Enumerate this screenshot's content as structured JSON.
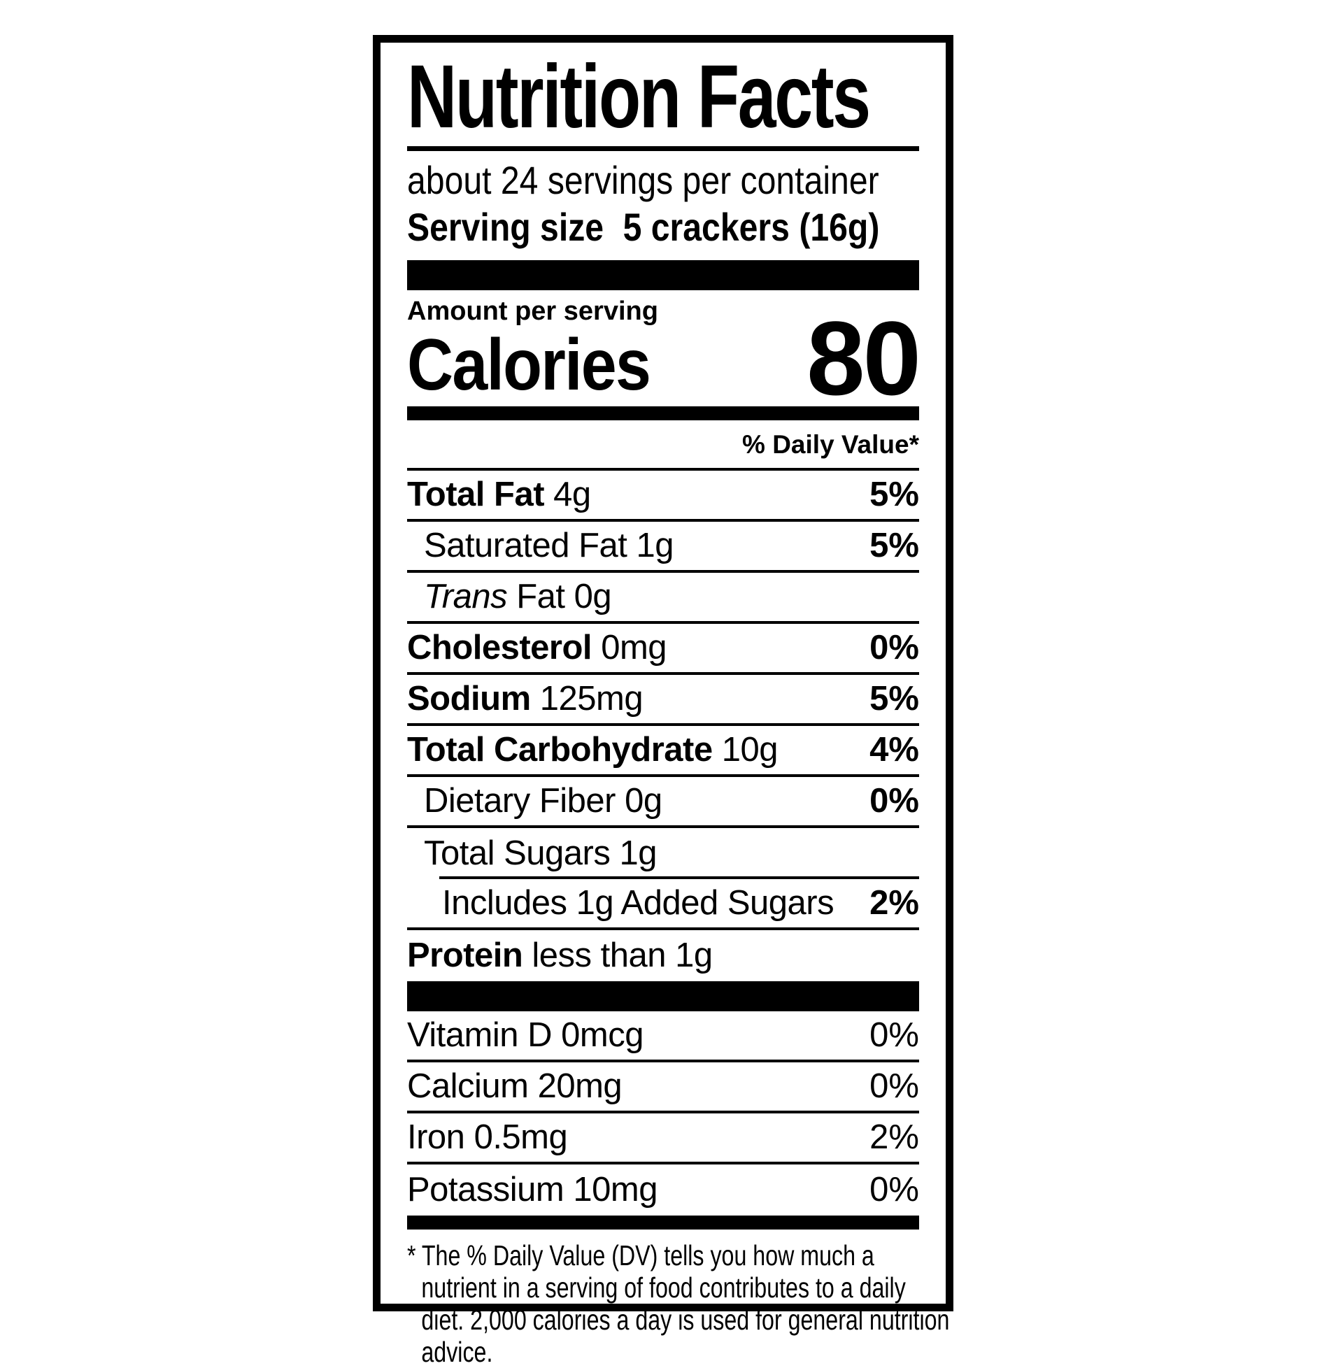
{
  "colors": {
    "ink": "#000000",
    "paper": "#ffffff"
  },
  "label": {
    "title": "Nutrition Facts",
    "servings_per_container": "about 24 servings per container",
    "serving_size_label": "Serving size",
    "serving_size_value": "5 crackers (16g)",
    "amount_per_serving": "Amount per serving",
    "calories_label": "Calories",
    "calories_value": "80",
    "daily_value_header": "% Daily Value*",
    "nutrients": [
      {
        "name": "Total Fat",
        "amount": "4g",
        "dv": "5%",
        "indent": 0,
        "bold_name": true,
        "italic_name": false
      },
      {
        "name": "Saturated Fat",
        "amount": "1g",
        "dv": "5%",
        "indent": 1,
        "bold_name": false,
        "italic_name": false
      },
      {
        "name": "Trans",
        "amount": "Fat 0g",
        "dv": "",
        "indent": 1,
        "bold_name": false,
        "italic_name": true
      },
      {
        "name": "Cholesterol",
        "amount": "0mg",
        "dv": "0%",
        "indent": 0,
        "bold_name": true,
        "italic_name": false
      },
      {
        "name": "Sodium",
        "amount": "125mg",
        "dv": "5%",
        "indent": 0,
        "bold_name": true,
        "italic_name": false
      },
      {
        "name": "Total Carbohydrate",
        "amount": "10g",
        "dv": "4%",
        "indent": 0,
        "bold_name": true,
        "italic_name": false
      },
      {
        "name": "Dietary Fiber",
        "amount": "0g",
        "dv": "0%",
        "indent": 1,
        "bold_name": false,
        "italic_name": false
      },
      {
        "name": "Total Sugars",
        "amount": "1g",
        "dv": "",
        "indent": 1,
        "bold_name": false,
        "italic_name": false,
        "no_bottom_divider": true
      },
      {
        "name": "Includes 1g Added Sugars",
        "amount": "",
        "dv": "2%",
        "indent": 2,
        "bold_name": false,
        "italic_name": false,
        "sub_divider_top": true
      },
      {
        "name": "Protein",
        "amount": "less than 1g",
        "dv": "",
        "indent": 0,
        "bold_name": true,
        "italic_name": false
      }
    ],
    "vitamins": [
      {
        "name": "Vitamin D",
        "amount": "0mcg",
        "dv": "0%"
      },
      {
        "name": "Calcium",
        "amount": "20mg",
        "dv": "0%"
      },
      {
        "name": "Iron",
        "amount": "0.5mg",
        "dv": "2%"
      },
      {
        "name": "Potassium",
        "amount": "10mg",
        "dv": "0%"
      }
    ],
    "footnote": "* The % Daily Value (DV) tells you how much a nutrient in a serving of food contributes to a daily diet. 2,000 calories a day is used for general nutrition advice."
  }
}
